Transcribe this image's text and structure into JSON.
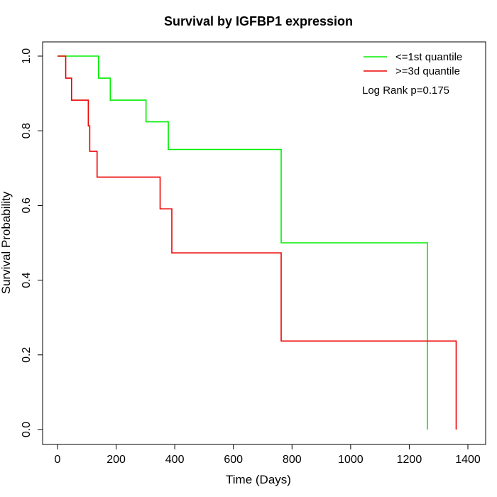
{
  "chart_data": {
    "type": "line",
    "title": "Survival by IGFBP1 expression",
    "xlabel": "Time (Days)",
    "ylabel": "Survival Probability",
    "xlim": [
      0,
      1400
    ],
    "ylim": [
      0,
      1
    ],
    "x_ticks": [
      0,
      200,
      400,
      600,
      800,
      1000,
      1200,
      1400
    ],
    "y_ticks": [
      0.0,
      0.2,
      0.4,
      0.6,
      0.8,
      1.0
    ],
    "y_tick_labels": [
      "0.0",
      "0.2",
      "0.4",
      "0.6",
      "0.8",
      "1.0"
    ],
    "grid": false,
    "legend_position": "top-right",
    "series": [
      {
        "name": "<=1st quantile",
        "color": "#00ee00",
        "steps": [
          [
            0,
            1.0
          ],
          [
            140,
            0.941
          ],
          [
            180,
            0.882
          ],
          [
            302,
            0.824
          ],
          [
            378,
            0.75
          ],
          [
            763,
            0.5
          ],
          [
            1262,
            0.0
          ]
        ]
      },
      {
        "name": ">=3d quantile",
        "color": "#ee0000",
        "steps": [
          [
            0,
            1.0
          ],
          [
            28,
            0.941
          ],
          [
            48,
            0.882
          ],
          [
            105,
            0.813
          ],
          [
            110,
            0.745
          ],
          [
            135,
            0.676
          ],
          [
            350,
            0.591
          ],
          [
            390,
            0.473
          ],
          [
            763,
            0.237
          ],
          [
            1360,
            0.0
          ]
        ]
      }
    ],
    "annotation": "Log Rank p=0.175"
  }
}
